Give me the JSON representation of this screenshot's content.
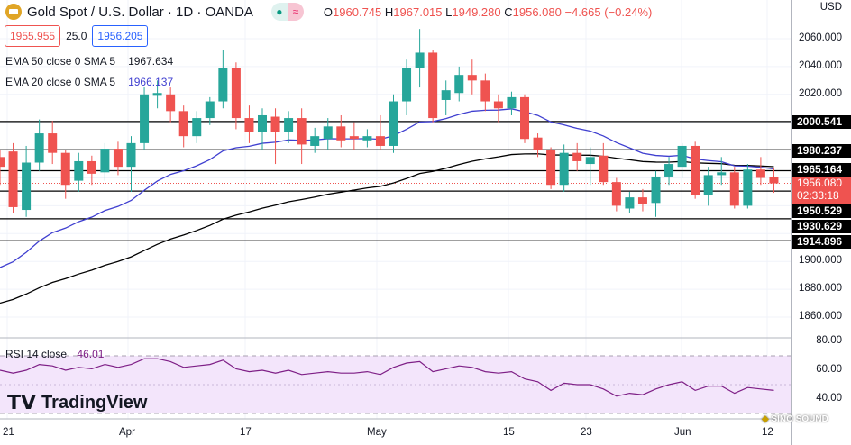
{
  "header": {
    "title": "Gold Spot / U.S. Dollar · 1D · OANDA",
    "open_label": "O",
    "open": "1960.745",
    "high_label": "H",
    "high": "1967.015",
    "low_label": "L",
    "low": "1949.280",
    "close_label": "C",
    "close": "1956.080",
    "change": "−4.665 (−0.24%)"
  },
  "quote": {
    "sell": "1955.955",
    "spread": "25.0",
    "buy": "1956.205"
  },
  "indicators": {
    "ema50_label": "EMA 50 close 0 SMA 5",
    "ema50_value": "1967.634",
    "ema20_label": "EMA 20 close 0 SMA 5",
    "ema20_value": "1966.137",
    "rsi_label": "RSI 14 close",
    "rsi_value": "46.01"
  },
  "axis": {
    "currency": "USD",
    "price_ticks": [
      "2060.000",
      "2040.000",
      "2020.000",
      "1900.000",
      "1880.000",
      "1860.000"
    ],
    "rsi_ticks": [
      "80.00",
      "60.00",
      "40.00"
    ],
    "time_labels": [
      "21",
      "Apr",
      "17",
      "May",
      "15",
      "23",
      "Jun",
      "12"
    ]
  },
  "levels": [
    "2000.541",
    "1980.237",
    "1965.164",
    "1950.529",
    "1930.629",
    "1914.896"
  ],
  "current": {
    "price": "1956.080",
    "countdown": "02:33:18"
  },
  "branding": {
    "logo": "TradingView",
    "watermark": "SINO SOUND"
  },
  "colors": {
    "up": "#26a69a",
    "down": "#ef5350",
    "ema50": "#000000",
    "ema20": "#3f3fd0",
    "rsi": "#7e1f86"
  },
  "chart_data": {
    "type": "candlestick",
    "ylim": [
      1850,
      2070
    ],
    "ohlc": [
      [
        1975,
        1980,
        1955,
        1968
      ],
      [
        1979,
        1985,
        1935,
        1939
      ],
      [
        1937,
        1983,
        1932,
        1971
      ],
      [
        1971,
        2002,
        1965,
        1992
      ],
      [
        1992,
        2001,
        1970,
        1978
      ],
      [
        1978,
        1980,
        1945,
        1955
      ],
      [
        1958,
        1978,
        1950,
        1972
      ],
      [
        1972,
        1976,
        1955,
        1963
      ],
      [
        1964,
        1985,
        1958,
        1981
      ],
      [
        1981,
        1986,
        1962,
        1968
      ],
      [
        1968,
        1990,
        1950,
        1985
      ],
      [
        1985,
        2025,
        1980,
        2020
      ],
      [
        2019,
        2030,
        2010,
        2021
      ],
      [
        2020,
        2025,
        2000,
        2008
      ],
      [
        2008,
        2012,
        1982,
        1990
      ],
      [
        1990,
        2008,
        1985,
        2003
      ],
      [
        2003,
        2018,
        1998,
        2015
      ],
      [
        2015,
        2052,
        2010,
        2039
      ],
      [
        2039,
        2043,
        1995,
        2003
      ],
      [
        2003,
        2012,
        1985,
        1993
      ],
      [
        1993,
        2010,
        1980,
        2005
      ],
      [
        2004,
        2010,
        1970,
        1993
      ],
      [
        1993,
        2008,
        1985,
        2003
      ],
      [
        2003,
        2010,
        1970,
        1984
      ],
      [
        1983,
        1996,
        1978,
        1990
      ],
      [
        1988,
        2003,
        1980,
        1997
      ],
      [
        1997,
        2005,
        1982,
        1987
      ],
      [
        1990,
        2000,
        1980,
        1988
      ],
      [
        1987,
        1995,
        1982,
        1990
      ],
      [
        1990,
        2005,
        1980,
        1983
      ],
      [
        1983,
        2020,
        1978,
        2015
      ],
      [
        2015,
        2045,
        2005,
        2039
      ],
      [
        2039,
        2067,
        2025,
        2050
      ],
      [
        2050,
        2052,
        2000,
        2003
      ],
      [
        2016,
        2030,
        2005,
        2023
      ],
      [
        2021,
        2040,
        2015,
        2034
      ],
      [
        2034,
        2045,
        2020,
        2030
      ],
      [
        2030,
        2035,
        2008,
        2015
      ],
      [
        2015,
        2020,
        2000,
        2010
      ],
      [
        2010,
        2022,
        2005,
        2018
      ],
      [
        2018,
        2020,
        1985,
        1988
      ],
      [
        1989,
        1992,
        1975,
        1980
      ],
      [
        1980,
        1982,
        1952,
        1955
      ],
      [
        1955,
        1984,
        1950,
        1978
      ],
      [
        1978,
        1985,
        1965,
        1972
      ],
      [
        1970,
        1982,
        1955,
        1975
      ],
      [
        1976,
        1985,
        1955,
        1957
      ],
      [
        1957,
        1960,
        1936,
        1940
      ],
      [
        1938,
        1950,
        1935,
        1946
      ],
      [
        1946,
        1952,
        1936,
        1941
      ],
      [
        1942,
        1965,
        1932,
        1961
      ],
      [
        1961,
        1975,
        1955,
        1970
      ],
      [
        1968,
        1985,
        1960,
        1983
      ],
      [
        1983,
        1986,
        1945,
        1948
      ],
      [
        1948,
        1968,
        1940,
        1962
      ],
      [
        1962,
        1975,
        1955,
        1964
      ],
      [
        1964,
        1968,
        1938,
        1940
      ],
      [
        1940,
        1970,
        1938,
        1966
      ],
      [
        1966,
        1975,
        1955,
        1960
      ],
      [
        1960.745,
        1967.015,
        1949.28,
        1956.08
      ]
    ],
    "ema50_seed": 1866,
    "ema20_seed": 1888,
    "rsi": [
      60,
      58,
      60,
      64,
      63,
      60,
      62,
      61,
      64,
      62,
      64,
      68,
      68,
      66,
      62,
      63,
      64,
      67,
      61,
      59,
      60,
      58,
      60,
      57,
      58,
      59,
      58,
      58,
      59,
      57,
      62,
      65,
      66,
      59,
      61,
      63,
      62,
      59,
      58,
      59,
      54,
      52,
      46,
      51,
      50,
      50,
      47,
      42,
      44,
      43,
      47,
      50,
      52,
      46,
      49,
      49,
      44,
      48,
      47,
      46
    ]
  }
}
